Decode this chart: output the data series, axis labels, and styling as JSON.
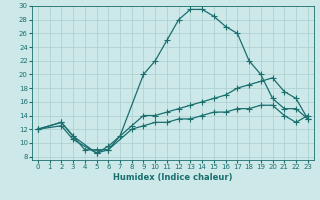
{
  "xlabel": "Humidex (Indice chaleur)",
  "bg_color": "#cce8e8",
  "grid_color": "#aacece",
  "line_color": "#1a6e6e",
  "xlim": [
    -0.5,
    23.5
  ],
  "ylim": [
    7.5,
    30
  ],
  "xticks": [
    0,
    1,
    2,
    3,
    4,
    5,
    6,
    7,
    8,
    9,
    10,
    11,
    12,
    13,
    14,
    15,
    16,
    17,
    18,
    19,
    20,
    21,
    22,
    23
  ],
  "yticks": [
    8,
    10,
    12,
    14,
    16,
    18,
    20,
    22,
    24,
    26,
    28,
    30
  ],
  "curve1_x": [
    0,
    2,
    3,
    4,
    5,
    6,
    7,
    9,
    10,
    11,
    12,
    13,
    14,
    15,
    16,
    17,
    18,
    19,
    20,
    21,
    22,
    23
  ],
  "curve1_y": [
    12,
    13,
    11,
    9,
    9,
    9,
    11,
    20,
    22,
    25,
    28,
    29.5,
    29.5,
    28.5,
    27,
    26,
    22,
    20,
    16.5,
    15,
    15,
    13.5
  ],
  "curve2_x": [
    0,
    2,
    3,
    5,
    6,
    8,
    9,
    10,
    11,
    12,
    13,
    14,
    15,
    16,
    17,
    18,
    19,
    20,
    21,
    22,
    23
  ],
  "curve2_y": [
    12,
    13,
    11,
    8.5,
    9.5,
    12.5,
    14,
    14,
    14.5,
    15,
    15.5,
    16,
    16.5,
    17,
    18,
    18.5,
    19,
    19.5,
    17.5,
    16.5,
    13.5
  ],
  "curve3_x": [
    0,
    2,
    3,
    5,
    6,
    8,
    9,
    10,
    11,
    12,
    13,
    14,
    15,
    16,
    17,
    18,
    19,
    20,
    21,
    22,
    23
  ],
  "curve3_y": [
    12,
    12.5,
    10.5,
    8.5,
    9,
    12,
    12.5,
    13,
    13,
    13.5,
    13.5,
    14,
    14.5,
    14.5,
    15,
    15,
    15.5,
    15.5,
    14,
    13,
    14
  ]
}
